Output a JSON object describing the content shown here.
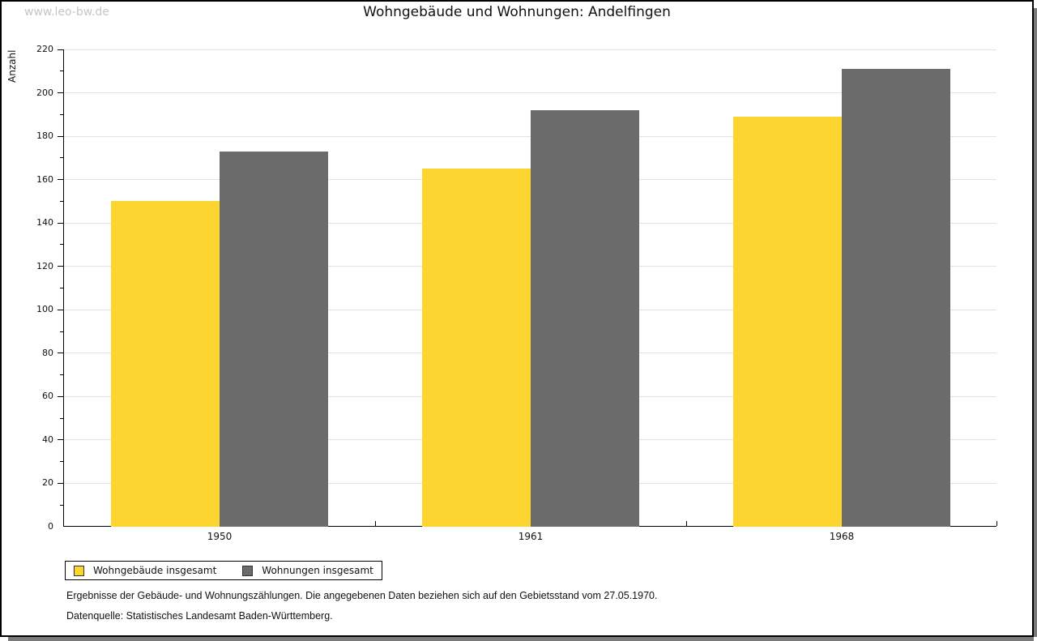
{
  "watermark": "www.leo-bw.de",
  "title": "Wohngebäude und Wohnungen: Andelfingen",
  "chart_data": {
    "type": "bar",
    "title": "Wohngebäude und Wohnungen: Andelfingen",
    "ylabel": "Anzahl",
    "xlabel": "",
    "categories": [
      "1950",
      "1961",
      "1968"
    ],
    "series": [
      {
        "name": "Wohngebäude insgesamt",
        "color": "#fdd530",
        "values": [
          150,
          165,
          189
        ]
      },
      {
        "name": "Wohnungen insgesamt",
        "color": "#6b6b6b",
        "values": [
          173,
          192,
          211
        ]
      }
    ],
    "ylim": [
      0,
      220
    ],
    "ytick_major": 20,
    "ytick_minor": 10,
    "grid": "horizontal-major",
    "legend_position": "bottom-left"
  },
  "footer": {
    "note": "Ergebnisse der Gebäude- und Wohnungszählungen. Die angegebenen Daten beziehen sich auf den Gebietsstand vom 27.05.1970.",
    "source": "Datenquelle: Statistisches Landesamt Baden-Württemberg."
  }
}
